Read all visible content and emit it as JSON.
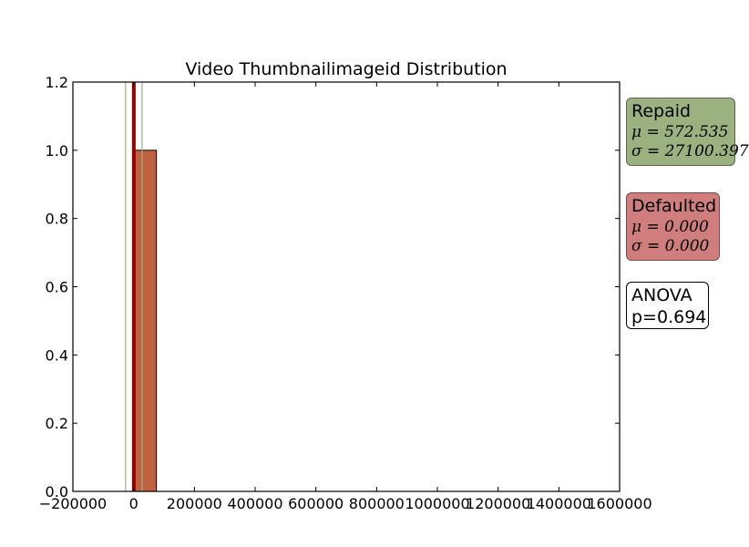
{
  "chart_data": {
    "type": "bar",
    "title": "Video Thumbnailimageid Distribution",
    "xlabel": "",
    "ylabel": "",
    "xlim": [
      -200000,
      1600000
    ],
    "ylim": [
      0,
      1.2
    ],
    "x_ticks": [
      -200000,
      0,
      200000,
      400000,
      600000,
      800000,
      1000000,
      1200000,
      1400000,
      1600000
    ],
    "x_tick_labels": [
      "−200000",
      "0",
      "200000",
      "400000",
      "600000",
      "800000",
      "1000000",
      "1200000",
      "1400000",
      "1600000"
    ],
    "y_ticks": [
      0,
      0.2,
      0.4,
      0.6,
      0.8,
      1.0,
      1.2
    ],
    "y_tick_labels": [
      "0.0",
      "0.2",
      "0.4",
      "0.6",
      "0.8",
      "1.0",
      "1.2"
    ],
    "bars": [
      {
        "x0": 0,
        "x1": 75000,
        "value": 1.0,
        "color": "#c0623f"
      }
    ],
    "vertical_lines": [
      {
        "x": 572.535,
        "color": "#990000",
        "role": "mean"
      },
      {
        "x": -26527.862,
        "color": "#9cb487",
        "role": "minus-sigma"
      },
      {
        "x": 27672.932,
        "color": "#9cb487",
        "role": "plus-sigma"
      }
    ],
    "grid": false
  },
  "stats": {
    "repaid": {
      "label": "Repaid",
      "mu": "μ = 572.535",
      "sigma": "σ = 27100.397",
      "color": "#9bb17f"
    },
    "defaulted": {
      "label": "Defaulted",
      "mu": "μ = 0.000",
      "sigma": "σ = 0.000",
      "color": "#cf7d7d"
    },
    "anova": {
      "label": "ANOVA",
      "p": "p=0.694"
    }
  }
}
